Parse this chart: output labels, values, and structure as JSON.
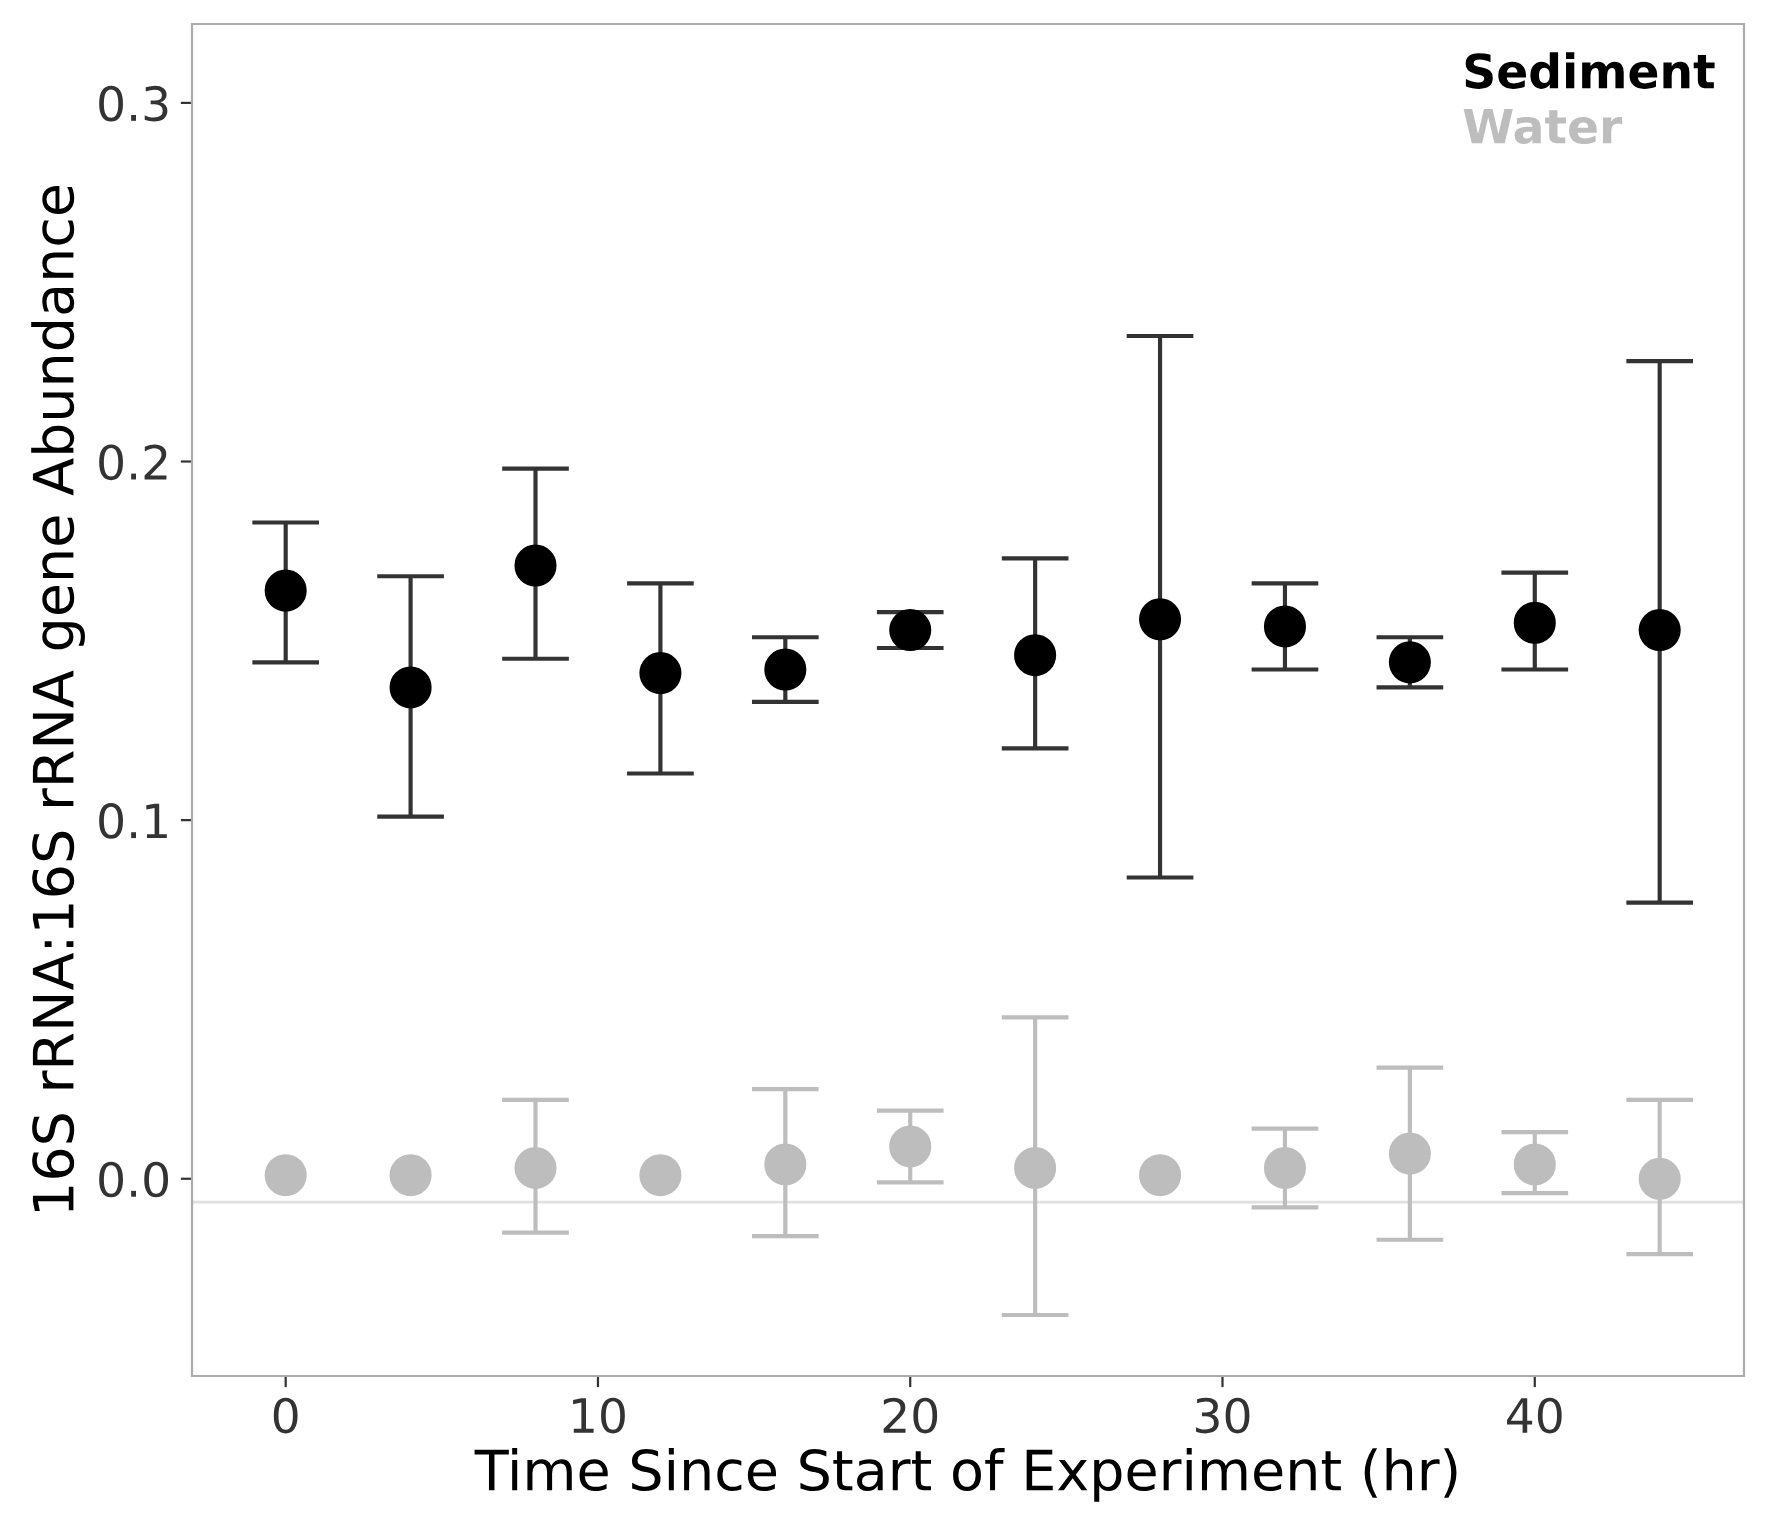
{
  "chart_data": {
    "type": "scatter",
    "xlabel": "Time Since Start of Experiment (hr)",
    "ylabel": "16S rRNA:16S rRNA gene Abundance",
    "x": [
      0,
      4,
      8,
      12,
      16,
      20,
      24,
      28,
      32,
      36,
      40,
      44
    ],
    "series": [
      {
        "name": "Sediment",
        "color": "#000000",
        "values": [
          0.164,
          0.137,
          0.171,
          0.141,
          0.142,
          0.153,
          0.146,
          0.156,
          0.154,
          0.144,
          0.155,
          0.153
        ],
        "errors": [
          [
            0.144,
            0.183
          ],
          [
            0.101,
            0.168
          ],
          [
            0.145,
            0.198
          ],
          [
            0.113,
            0.166
          ],
          [
            0.133,
            0.151
          ],
          [
            0.148,
            0.158
          ],
          [
            0.12,
            0.173
          ],
          [
            0.084,
            0.235
          ],
          [
            0.142,
            0.166
          ],
          [
            0.137,
            0.151
          ],
          [
            0.142,
            0.169
          ],
          [
            0.077,
            0.228
          ]
        ]
      },
      {
        "name": "Water",
        "color": "#bdbdbd",
        "values": [
          0.001,
          0.001,
          0.003,
          0.001,
          0.004,
          0.009,
          0.003,
          0.001,
          0.003,
          0.007,
          0.004,
          0.0
        ],
        "errors": [
          null,
          null,
          [
            -0.015,
            0.022
          ],
          null,
          [
            -0.016,
            0.025
          ],
          [
            -0.001,
            0.019
          ],
          [
            -0.038,
            0.045
          ],
          null,
          [
            -0.008,
            0.014
          ],
          [
            -0.017,
            0.031
          ],
          [
            -0.004,
            0.013
          ],
          [
            -0.021,
            0.022
          ]
        ]
      }
    ],
    "xlim": [
      -3.0,
      46.7
    ],
    "ylim": [
      -0.055,
      0.322
    ],
    "xticks": [
      0,
      10,
      20,
      30,
      40
    ],
    "yticks": [
      {
        "value": 0,
        "label": "0.0"
      },
      {
        "value": 0.1,
        "label": "0.1"
      },
      {
        "value": 0.2,
        "label": "0.2"
      },
      {
        "value": 0.3,
        "label": "0.3"
      }
    ],
    "ref_lines": [
      {
        "axis": "y",
        "value": -0.0065,
        "color": "#e0e0e0"
      }
    ],
    "marker": "circle",
    "legend": "top right",
    "grid": false
  }
}
